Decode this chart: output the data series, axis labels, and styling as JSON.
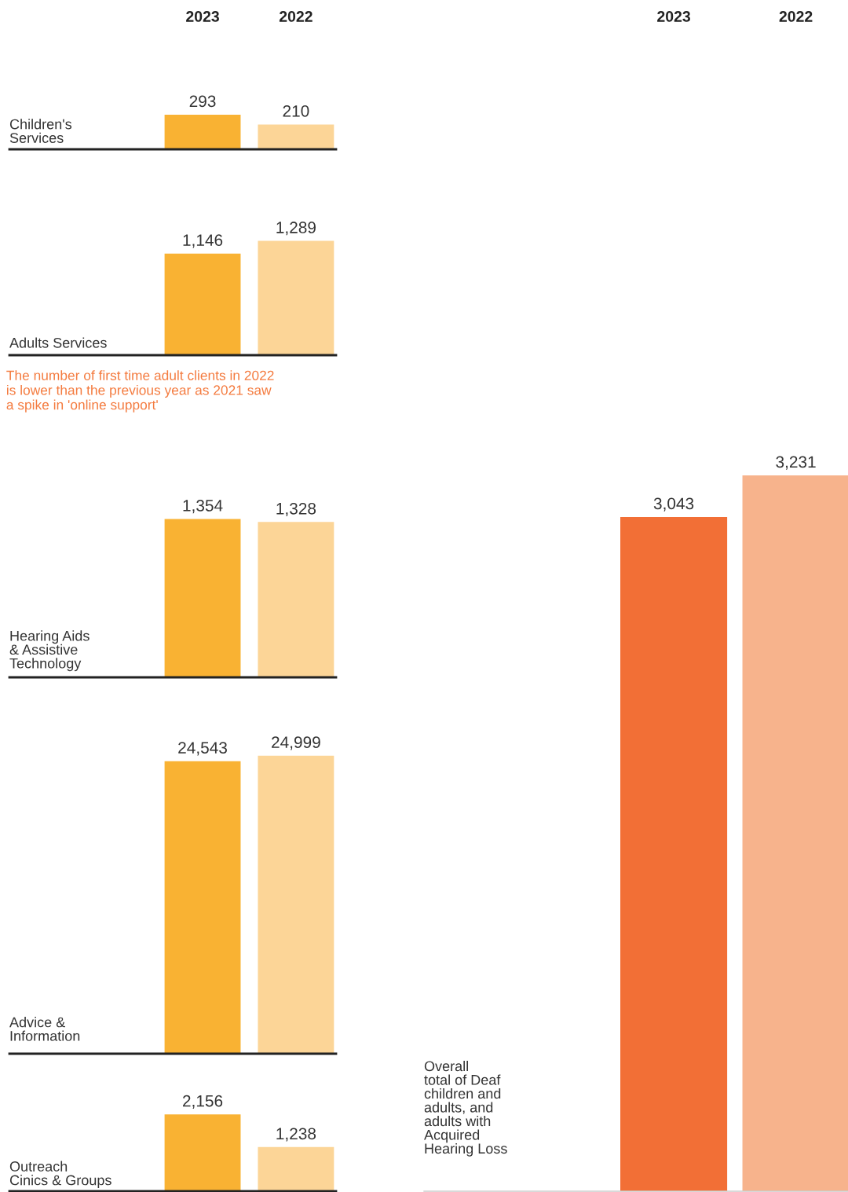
{
  "chart_data": [
    {
      "type": "bar",
      "ylabel": "Children's\nServices",
      "categories": [
        "2023",
        "2022"
      ],
      "tick_labels": "x",
      "values": [
        293,
        210
      ],
      "value_labels": [
        "293",
        "210"
      ],
      "colors": [
        "#f9b233",
        "#fcd597"
      ]
    },
    {
      "type": "bar",
      "ylabel": "Adults Services",
      "categories": [
        null,
        null
      ],
      "tick_labels": false,
      "values": [
        1146,
        1289
      ],
      "value_labels": [
        "1,146",
        "1,289"
      ],
      "colors": [
        "#f9b233",
        "#fcd597"
      ],
      "annotations": [
        "The number of first time adult clients in 2022\nis lower than the previous year as 2021 saw\na spike in 'online support'"
      ]
    },
    {
      "type": "bar",
      "ylabel": "Hearing Aids\n& Assistive\nTechnology",
      "categories": [
        null,
        null
      ],
      "tick_labels": false,
      "values": [
        1354,
        1328
      ],
      "value_labels": [
        "1,354",
        "1,328"
      ],
      "colors": [
        "#f9b233",
        "#fcd597"
      ]
    },
    {
      "type": "bar",
      "ylabel": "Advice &\nInformation",
      "categories": [
        null,
        null
      ],
      "tick_labels": false,
      "values": [
        24543,
        24999
      ],
      "value_labels": [
        "24,543",
        "24,999"
      ],
      "colors": [
        "#f9b233",
        "#fcd597"
      ]
    },
    {
      "type": "bar",
      "ylabel": "Outreach\nCinics & Groups",
      "categories": [
        null,
        null
      ],
      "tick_labels": false,
      "values": [
        2156,
        1238
      ],
      "value_labels": [
        "2,156",
        "1,238"
      ],
      "colors": [
        "#f9b233",
        "#fcd597"
      ]
    },
    {
      "type": "bar",
      "ylabel": "Overall\ntotal of Deaf\nchildren and\nadults, and\nadults with\nAcquired\nHearing Loss",
      "categories": [
        "2023",
        "2022"
      ],
      "tick_labels": "x",
      "values": [
        3043,
        3231
      ],
      "value_labels": [
        "3,043",
        "3,231"
      ],
      "colors": [
        "#f26f36",
        "#f7b38c"
      ]
    }
  ]
}
